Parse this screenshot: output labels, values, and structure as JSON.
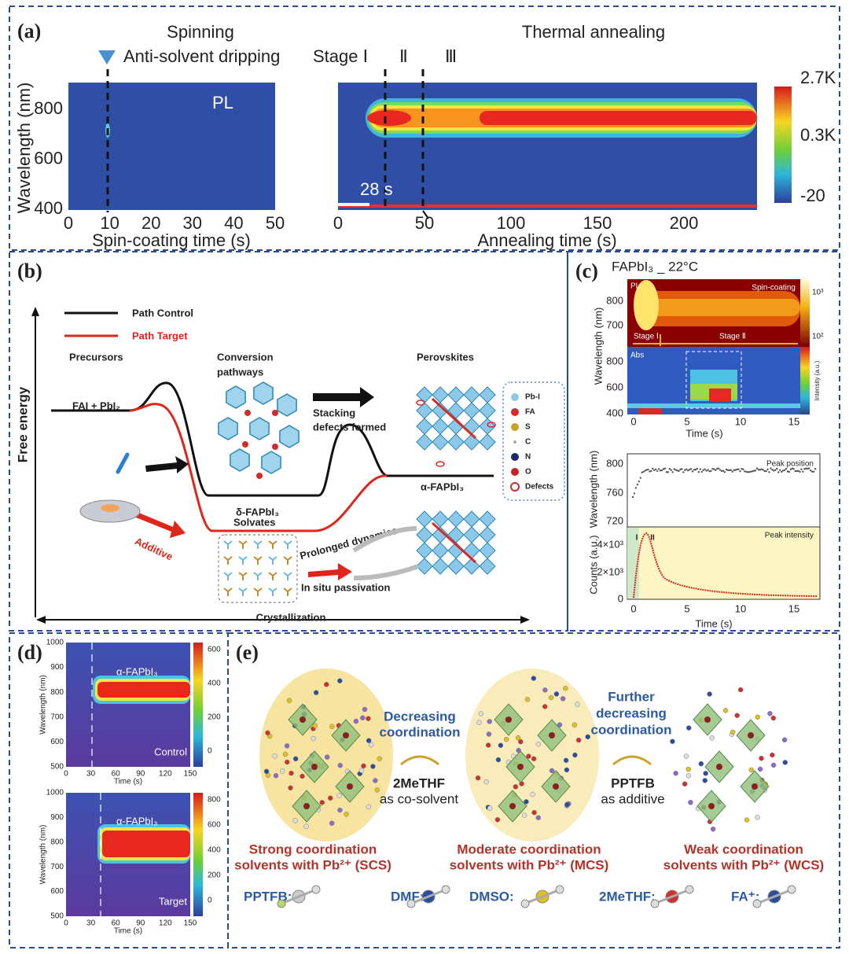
{
  "panels": {
    "a": {
      "label": "(a)",
      "spinning": "Spinning",
      "annealing": "Thermal annealing",
      "dripping": "Anti-solvent dripping",
      "stages": [
        "Stage Ⅰ",
        "Ⅱ",
        "Ⅲ"
      ],
      "pl": "PL",
      "time_mark": "28 s",
      "y_label": "Wavelength (nm)",
      "y_ticks": [
        400,
        600,
        800
      ],
      "spin_x_label": "Spin-coating time (s)",
      "spin_x_ticks": [
        0,
        10,
        20,
        30,
        40,
        50
      ],
      "anneal_x_label": "Annealing time (s)",
      "anneal_x_ticks": [
        0,
        50,
        100,
        150,
        200
      ],
      "colorbar_ticks": [
        "2.7K",
        "0.3K",
        "-20"
      ]
    },
    "b": {
      "label": "(b)",
      "y_label": "Free energy",
      "x_label": "Crystallization",
      "legend": [
        "Path  Control",
        "Path  Target"
      ],
      "precursors": "Precursors",
      "conversion": [
        "Conversion",
        "pathways"
      ],
      "perovskites": "Perovskites",
      "reactants": "FAI + PbI₂",
      "stacking": [
        "Stacking",
        "defects formed"
      ],
      "delta": "δ-FAPbI₃",
      "alpha": "α-FAPbI₃",
      "solvates": "Solvates",
      "additive": "Additive",
      "prolonged": "Prolonged dynamics",
      "passivation": "In situ passivation",
      "key": [
        "Pb-I",
        "FA",
        "S",
        "C",
        "N",
        "O",
        "Defects"
      ]
    },
    "c": {
      "label": "(c)",
      "title": "FAPbI₃ _ 22°C",
      "pl": "PL",
      "spin": "Spin-coating",
      "stage1": "Stage Ⅰ",
      "stage2": "Stage Ⅱ",
      "abs": "Abs",
      "y_label": "Wavelength (nm)",
      "pl_y_ticks": [
        800,
        700
      ],
      "abs_y_ticks": [
        800,
        600,
        400
      ],
      "pl_cbar_ticks": [
        "10³",
        "10²"
      ],
      "abs_cbar_label": "Intensity (a.u.)",
      "x_ticks": [
        0,
        5,
        10,
        15
      ],
      "x_label": "Time (s)",
      "peak_legend": "Peak position",
      "peak_y_label": "Wavelength (nm)",
      "peak_y_ticks": [
        720,
        760,
        800
      ],
      "int_legend": "Peak intensity",
      "int_y_label": "Counts (a.u.)",
      "int_y_ticks": [
        "0",
        "2×10³",
        "4×10³"
      ],
      "stage_marks": [
        "I",
        "II"
      ],
      "lower_x_ticks": [
        0,
        5,
        10,
        15
      ],
      "lower_x_label": "Time (s)"
    },
    "d": {
      "label": "(d)",
      "y_label": "Wavelength (nm)",
      "x_label": "Time (s)",
      "y_ticks": [
        500,
        600,
        700,
        800,
        900,
        1000
      ],
      "x_ticks": [
        0,
        30,
        60,
        90,
        120,
        150
      ],
      "phase": "α-FAPbI₃",
      "plots": [
        {
          "name": "Control",
          "cbar_ticks": [
            0,
            200,
            400,
            600
          ]
        },
        {
          "name": "Target",
          "cbar_ticks": [
            0,
            200,
            400,
            600,
            800
          ]
        }
      ]
    },
    "e": {
      "label": "(e)",
      "step1": [
        "Decreasing",
        "coordination"
      ],
      "agent1": "2MeTHF",
      "role1": "as co-solvent",
      "step2": [
        "Further",
        "decreasing",
        "coordination"
      ],
      "agent2": "PPTFB",
      "role2": "as additive",
      "classes": [
        [
          "Strong coordination",
          "solvents with Pb²⁺ (SCS)"
        ],
        [
          "Moderate coordination",
          "solvents with Pb²⁺ (MCS)"
        ],
        [
          "Weak coordination",
          "solvents with Pb²⁺ (WCS)"
        ]
      ],
      "molecules": [
        "PPTFB:",
        "DMF:",
        "DMSO:",
        "2MeTHF:",
        "FA⁺:"
      ]
    }
  }
}
